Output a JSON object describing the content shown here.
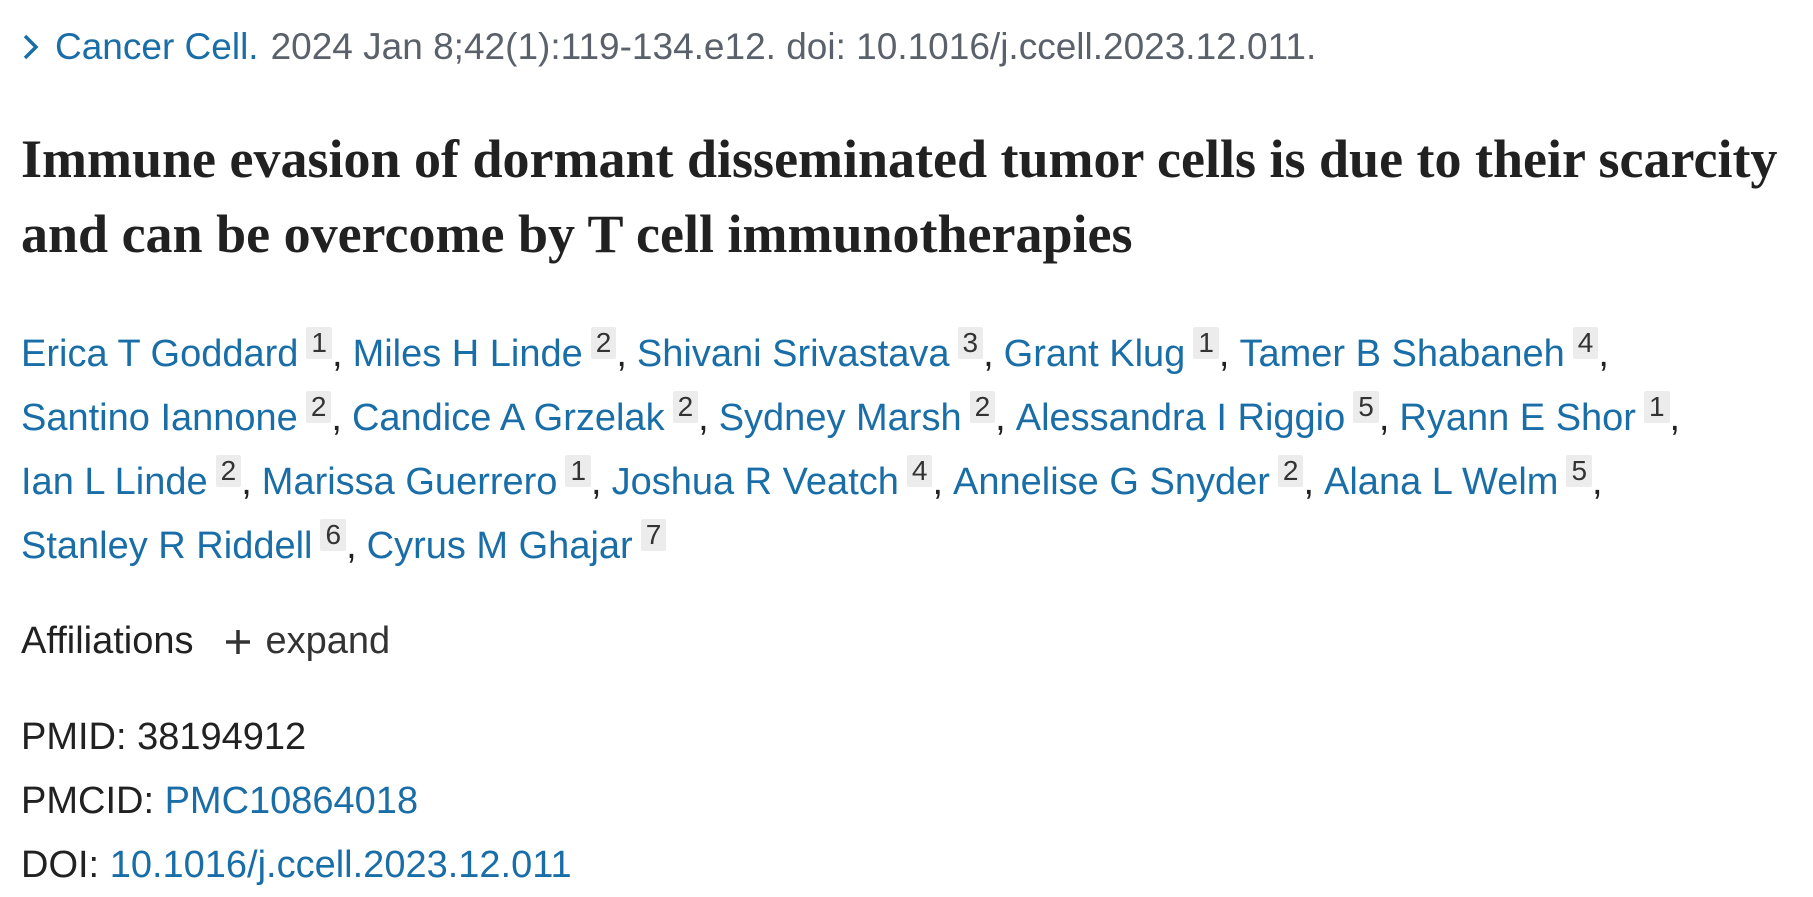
{
  "header": {
    "journal": "Cancer Cell.",
    "citation": "2024 Jan 8;42(1):119-134.e12. doi: 10.1016/j.ccell.2023.12.011."
  },
  "title": "Immune evasion of dormant disseminated tumor cells is due to their scarcity and can be overcome by T cell immunotherapies",
  "authors_separator": ",",
  "authors": [
    {
      "name": "Erica T Goddard",
      "aff": 1
    },
    {
      "name": "Miles H Linde",
      "aff": 2
    },
    {
      "name": "Shivani Srivastava",
      "aff": 3
    },
    {
      "name": "Grant Klug",
      "aff": 1
    },
    {
      "name": "Tamer B Shabaneh",
      "aff": 4
    },
    {
      "name": "Santino Iannone",
      "aff": 2
    },
    {
      "name": "Candice A Grzelak",
      "aff": 2
    },
    {
      "name": "Sydney Marsh",
      "aff": 2
    },
    {
      "name": "Alessandra I Riggio",
      "aff": 5
    },
    {
      "name": "Ryann E Shor",
      "aff": 1
    },
    {
      "name": "Ian L Linde",
      "aff": 2
    },
    {
      "name": "Marissa Guerrero",
      "aff": 1
    },
    {
      "name": "Joshua R Veatch",
      "aff": 4
    },
    {
      "name": "Annelise G Snyder",
      "aff": 2
    },
    {
      "name": "Alana L Welm",
      "aff": 5
    },
    {
      "name": "Stanley R Riddell",
      "aff": 6
    },
    {
      "name": "Cyrus M Ghajar",
      "aff": 7
    }
  ],
  "affiliations": {
    "label": "Affiliations",
    "toggle": "expand"
  },
  "identifiers": [
    {
      "label": "PMID:",
      "value": "38194912"
    },
    {
      "label": "PMCID:",
      "value": "PMC10864018"
    },
    {
      "label": "DOI:",
      "value": "10.1016/j.ccell.2023.12.011"
    }
  ]
}
